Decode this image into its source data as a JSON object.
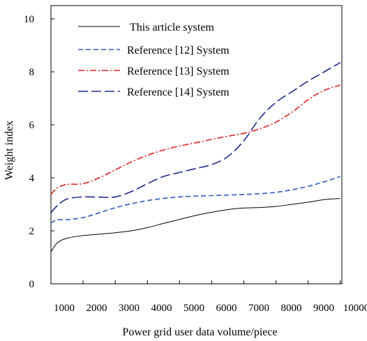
{
  "chart_data": {
    "type": "line",
    "title": "",
    "xlabel": "Power grid user data volume/piece",
    "ylabel": "Weight index",
    "xlim": [
      1000,
      10000
    ],
    "ylim": [
      0,
      10.5
    ],
    "x_ticks": [
      1000,
      2000,
      3000,
      4000,
      5000,
      6000,
      7000,
      8000,
      9000,
      10000
    ],
    "y_ticks": [
      0,
      2,
      4,
      6,
      8,
      10
    ],
    "grid": false,
    "legend_position": "top-left",
    "x": [
      1000,
      1200,
      1500,
      2000,
      2500,
      3000,
      3500,
      4000,
      4500,
      5000,
      5500,
      6000,
      6500,
      7000,
      7500,
      8000,
      8500,
      9000,
      9500,
      10000
    ],
    "series": [
      {
        "name": "This article system",
        "color": "#000000",
        "dash": "solid",
        "values": [
          1.2,
          1.55,
          1.72,
          1.82,
          1.87,
          1.93,
          2.0,
          2.12,
          2.28,
          2.43,
          2.58,
          2.7,
          2.8,
          2.86,
          2.88,
          2.92,
          3.0,
          3.08,
          3.18,
          3.22
        ]
      },
      {
        "name": "Reference [12] System",
        "color": "#2b5cbf",
        "dash": "dashed",
        "values": [
          2.3,
          2.42,
          2.42,
          2.5,
          2.68,
          2.87,
          3.02,
          3.14,
          3.22,
          3.28,
          3.31,
          3.33,
          3.35,
          3.37,
          3.4,
          3.45,
          3.55,
          3.68,
          3.85,
          4.05
        ]
      },
      {
        "name": "Reference [13] System",
        "color": "#e0201e",
        "dash": "dash-dot",
        "values": [
          3.38,
          3.62,
          3.75,
          3.78,
          4.0,
          4.3,
          4.6,
          4.85,
          5.05,
          5.2,
          5.32,
          5.45,
          5.57,
          5.68,
          5.85,
          6.1,
          6.48,
          6.95,
          7.3,
          7.5
        ]
      },
      {
        "name": "Reference [14] System",
        "color": "#1b2a8c",
        "dash": "long-dash",
        "values": [
          2.68,
          2.95,
          3.2,
          3.28,
          3.27,
          3.28,
          3.48,
          3.78,
          4.05,
          4.2,
          4.35,
          4.5,
          4.8,
          5.4,
          6.25,
          6.85,
          7.25,
          7.65,
          8.0,
          8.35
        ]
      }
    ]
  }
}
